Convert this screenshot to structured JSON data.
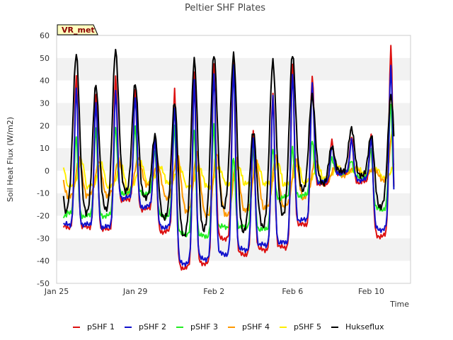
{
  "chart_data": {
    "type": "line",
    "title": "Peltier SHF Plates",
    "xlabel": "Time",
    "ylabel": "Soil Heat Flux (W/m2)",
    "site_tag": "VR_met",
    "ylim": [
      -50,
      60
    ],
    "yticks": [
      -50,
      -40,
      -30,
      -20,
      -10,
      0,
      10,
      20,
      30,
      40,
      50,
      60
    ],
    "xlim": [
      0,
      18
    ],
    "xticks": [
      {
        "value": 0,
        "label": "Jan 25"
      },
      {
        "value": 4,
        "label": "Jan 29"
      },
      {
        "value": 8,
        "label": "Feb 2"
      },
      {
        "value": 12,
        "label": "Feb 6"
      },
      {
        "value": 16,
        "label": "Feb 10"
      }
    ],
    "x_unit": "days since Jan 25 00:00",
    "grid": "horizontal bands",
    "legend_position": "bottom",
    "daily_peaks": {
      "days": [
        1,
        2,
        3,
        4,
        5,
        6,
        7,
        8,
        9,
        10,
        11,
        12,
        13,
        14,
        15,
        16,
        17
      ],
      "series": [
        {
          "name": "pSHF 1",
          "color": "#dd1111",
          "peak": [
            42,
            33,
            42,
            35,
            15,
            36,
            45,
            47,
            50,
            17,
            35,
            46,
            42,
            13,
            15,
            16,
            56
          ],
          "trough": [
            -25,
            -25,
            -26,
            -13,
            -17,
            -27,
            -43,
            -41,
            -30,
            -37,
            -35,
            -34,
            -24,
            -6,
            -1,
            -5,
            -29
          ]
        },
        {
          "name": "pSHF 2",
          "color": "#1111cc",
          "peak": [
            36,
            30,
            35,
            33,
            14,
            29,
            40,
            44,
            46,
            15,
            32,
            43,
            38,
            11,
            14,
            15,
            47
          ],
          "trough": [
            -24,
            -24,
            -25,
            -12,
            -16,
            -25,
            -41,
            -39,
            -37,
            -35,
            -33,
            -32,
            -22,
            -5,
            -1,
            -4,
            -26
          ]
        },
        {
          "name": "pSHF 3",
          "color": "#22ee22",
          "peak": [
            15,
            19,
            20,
            20,
            10,
            20,
            19,
            20,
            6,
            10,
            10,
            10,
            14,
            6,
            5,
            10,
            30
          ],
          "trough": [
            -19,
            -20,
            -20,
            -10,
            -10,
            -20,
            -28,
            -29,
            -25,
            -25,
            -26,
            -12,
            -11,
            -5,
            -1,
            -3,
            -17
          ]
        },
        {
          "name": "pSHF 4",
          "color": "#ff9900",
          "peak": [
            5,
            4,
            5,
            6,
            3,
            8,
            8,
            8,
            5,
            5,
            6,
            5,
            5,
            2,
            2,
            1,
            21
          ],
          "trough": [
            -12,
            -11,
            -11,
            -10,
            -6,
            -12,
            -18,
            -20,
            -20,
            -18,
            -17,
            -16,
            -12,
            -6,
            -2,
            -2,
            -4
          ]
        },
        {
          "name": "pSHF 5",
          "color": "#ffee00",
          "peak": [
            4,
            3,
            3,
            4,
            2,
            2,
            2,
            2,
            2,
            2,
            3,
            3,
            2,
            2,
            1,
            1,
            4
          ],
          "trough": [
            -7,
            -7,
            -7,
            -8,
            -5,
            -5,
            -7,
            -7,
            -6,
            -6,
            -6,
            -6,
            -5,
            -3,
            -1,
            -1,
            -3
          ]
        },
        {
          "name": "Hukseflux",
          "color": "#000000",
          "peak": [
            52,
            38,
            53,
            38,
            15,
            30,
            49,
            52,
            52,
            18,
            49,
            52,
            33,
            10,
            18,
            15,
            33
          ],
          "trough": [
            -16,
            -19,
            -18,
            -10,
            -13,
            -22,
            -30,
            -27,
            -17,
            -27,
            -25,
            -20,
            -9,
            -6,
            -1,
            -3,
            -17
          ]
        }
      ]
    }
  }
}
